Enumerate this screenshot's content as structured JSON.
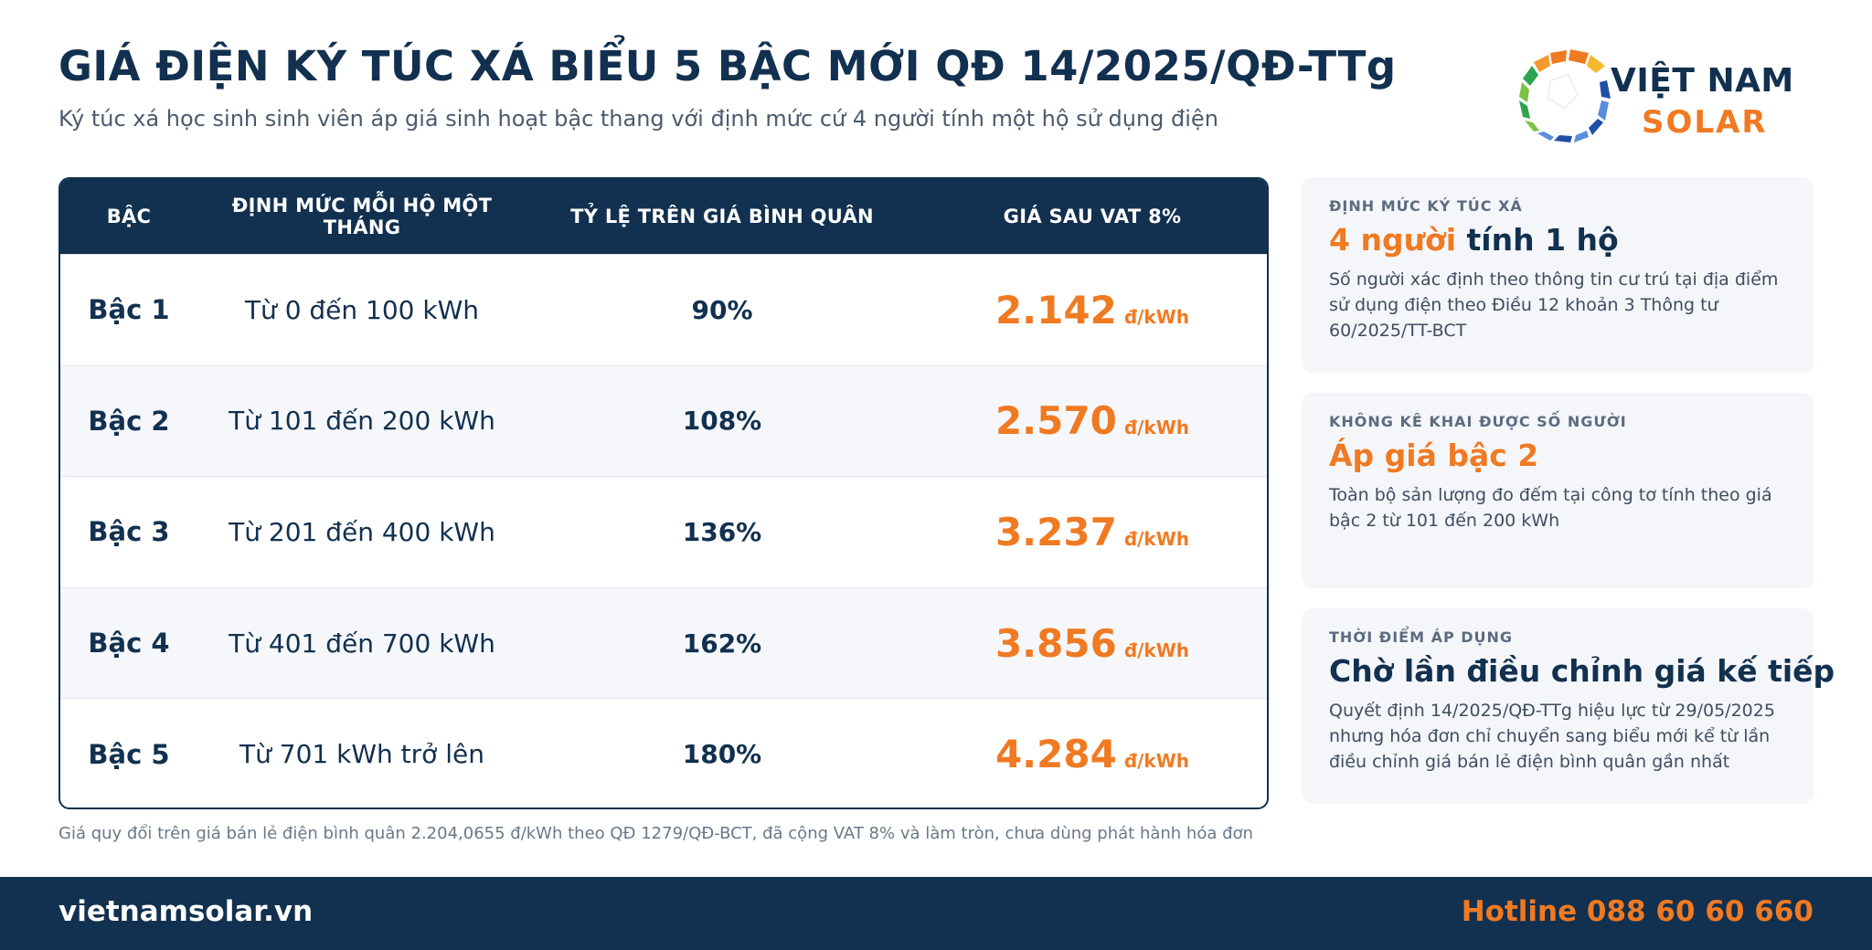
{
  "header": {
    "title": "GIÁ ĐIỆN KÝ TÚC XÁ BIỂU 5 BẬC MỚI QĐ 14/2025/QĐ-TTg",
    "subtitle": "Ký túc xá học sinh sinh viên áp giá sinh hoạt bậc thang với định mức cứ 4 người tính một hộ sử dụng điện"
  },
  "logo": {
    "line1": "VIỆT NAM",
    "line2": "SOLAR",
    "colors": [
      "#f07a22",
      "#f5b82e",
      "#2ea44f",
      "#7cc242",
      "#1f4fa8",
      "#5a8de0"
    ]
  },
  "table": {
    "headers": [
      "BẬC",
      "ĐỊNH MỨC MỖI HỘ MỘT THÁNG",
      "TỶ LỆ TRÊN GIÁ BÌNH QUÂN",
      "GIÁ SAU VAT 8%"
    ],
    "rows": [
      {
        "level": "Bậc 1",
        "range": "Từ 0 đến 100 kWh",
        "ratio": "90%",
        "price": "2.142",
        "unit": "đ/kWh"
      },
      {
        "level": "Bậc 2",
        "range": "Từ 101 đến 200 kWh",
        "ratio": "108%",
        "price": "2.570",
        "unit": "đ/kWh"
      },
      {
        "level": "Bậc 3",
        "range": "Từ 201 đến 400 kWh",
        "ratio": "136%",
        "price": "3.237",
        "unit": "đ/kWh"
      },
      {
        "level": "Bậc 4",
        "range": "Từ 401 đến 700 kWh",
        "ratio": "162%",
        "price": "3.856",
        "unit": "đ/kWh"
      },
      {
        "level": "Bậc 5",
        "range": "Từ 701 kWh trở lên",
        "ratio": "180%",
        "price": "4.284",
        "unit": "đ/kWh"
      }
    ],
    "footnote": "Giá quy đổi trên giá bán lẻ điện bình quân 2.204,0655 đ/kWh theo QĐ 1279/QĐ-BCT, đã cộng VAT 8% và làm tròn, chưa dùng phát hành hóa đơn"
  },
  "cards": [
    {
      "label": "ĐỊNH MỨC KÝ TÚC XÁ",
      "head_accent": "4 người",
      "head_rest": " tính 1 hộ",
      "body": "Số người xác định theo thông tin cư trú tại địa điểm sử dụng điện theo Điều 12 khoản 3 Thông tư 60/2025/TT-BCT"
    },
    {
      "label": "KHÔNG KÊ KHAI ĐƯỢC SỐ NGƯỜI",
      "head_accent": "Áp giá bậc 2",
      "head_rest": "",
      "body": "Toàn bộ sản lượng đo đếm tại công tơ tính theo giá bậc 2 từ 101 đến 200 kWh"
    },
    {
      "label": "THỜI ĐIỂM ÁP DỤNG",
      "head_accent": "",
      "head_rest": "Chờ lần điều chỉnh giá kế tiếp",
      "body": "Quyết định 14/2025/QĐ-TTg hiệu lực từ 29/05/2025 nhưng hóa đơn chỉ chuyển sang biểu mới kể từ lần điều chỉnh giá bán lẻ điện bình quân gần nhất"
    }
  ],
  "footer": {
    "site": "vietnamsolar.vn",
    "hotline": "Hotline 088 60 60 660"
  },
  "colors": {
    "navy": "#12304f",
    "accent": "#f07a22"
  }
}
